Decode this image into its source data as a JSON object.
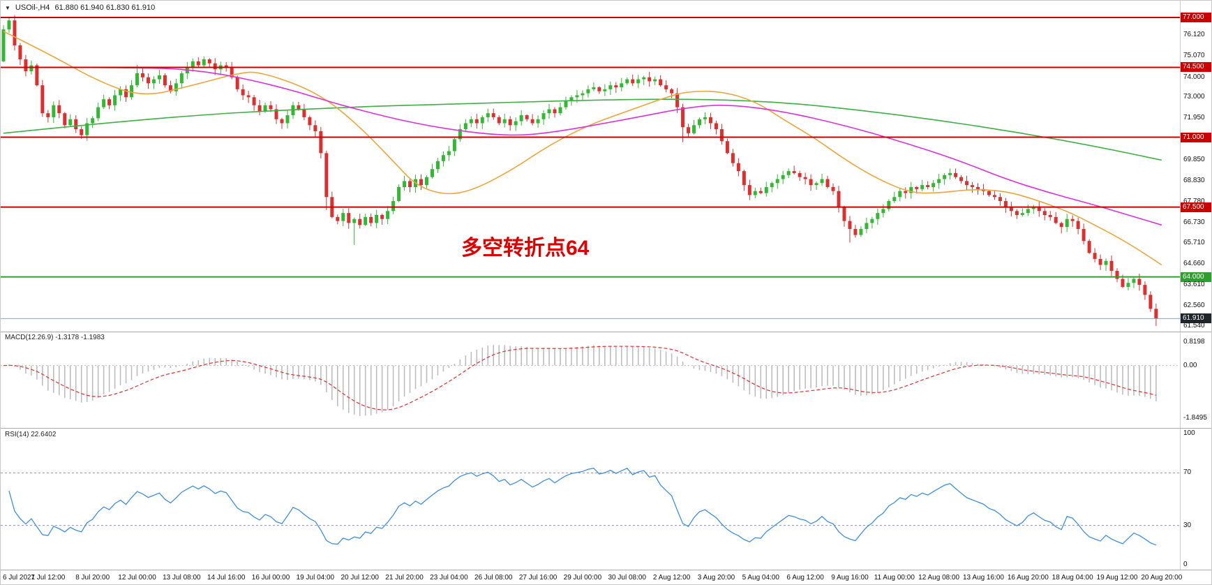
{
  "header": {
    "dropdown_icon": "▼",
    "title": "USOil-,H4",
    "ohlc": "61.880 61.940 61.830 61.910"
  },
  "annotation": {
    "text": "多空转折点64",
    "color": "#DD0000"
  },
  "panes": {
    "macd": {
      "label": "MACD(12.26.9) -1.3178 -1.1983",
      "axis": [
        "0.8198",
        "0.00",
        "-1.8495"
      ]
    },
    "rsi": {
      "label": "RSI(14) 22.6402",
      "axis": [
        "100",
        "70",
        "30",
        "0"
      ]
    }
  },
  "price_axis": [
    {
      "label": "77.000",
      "type": "red"
    },
    {
      "label": "76.120",
      "type": "plain"
    },
    {
      "label": "75.070",
      "type": "plain"
    },
    {
      "label": "74.500",
      "type": "red"
    },
    {
      "label": "74.000",
      "type": "plain"
    },
    {
      "label": "73.000",
      "type": "plain"
    },
    {
      "label": "71.950",
      "type": "plain"
    },
    {
      "label": "71.000",
      "type": "red"
    },
    {
      "label": "69.850",
      "type": "plain"
    },
    {
      "label": "68.830",
      "type": "plain"
    },
    {
      "label": "67.780",
      "type": "plain"
    },
    {
      "label": "67.500",
      "type": "red"
    },
    {
      "label": "66.730",
      "type": "plain"
    },
    {
      "label": "65.710",
      "type": "plain"
    },
    {
      "label": "64.660",
      "type": "plain"
    },
    {
      "label": "64.000",
      "type": "green"
    },
    {
      "label": "63.610",
      "type": "plain"
    },
    {
      "label": "62.560",
      "type": "plain"
    },
    {
      "label": "61.910",
      "type": "current"
    },
    {
      "label": "61.540",
      "type": "plain"
    }
  ],
  "time_axis": [
    "6 Jul 2021",
    "7 Jul 12:00",
    "8 Jul 20:00",
    "12 Jul 00:00",
    "13 Jul 08:00",
    "14 Jul 16:00",
    "16 Jul 00:00",
    "19 Jul 04:00",
    "20 Jul 12:00",
    "21 Jul 20:00",
    "23 Jul 04:00",
    "26 Jul 08:00",
    "27 Jul 16:00",
    "29 Jul 00:00",
    "30 Jul 08:00",
    "2 Aug 12:00",
    "3 Aug 20:00",
    "5 Aug 04:00",
    "6 Aug 12:00",
    "9 Aug 16:00",
    "11 Aug 00:00",
    "12 Aug 08:00",
    "13 Aug 16:00",
    "16 Aug 20:00",
    "18 Aug 04:00",
    "19 Aug 12:00",
    "20 Aug 20:00"
  ],
  "chart_data": {
    "type": "candlestick",
    "symbol": "USOil-",
    "timeframe": "H4",
    "title": "USOil-,H4 61.880 61.940 61.830 61.910",
    "ohlc_display": {
      "open": "61.880",
      "high": "61.940",
      "low": "61.830",
      "close": "61.910"
    },
    "visible_price_range": {
      "min": 61.35,
      "max": 77.4
    },
    "bars_per_label": 8,
    "first_open": 74.8,
    "closes": [
      76.4,
      76.85,
      75.6,
      74.9,
      74.3,
      74.6,
      73.6,
      72.2,
      72.0,
      72.6,
      72.2,
      71.6,
      71.9,
      71.4,
      71.1,
      71.7,
      71.95,
      72.5,
      72.9,
      72.6,
      73.1,
      73.4,
      73.0,
      73.6,
      74.2,
      74.0,
      73.7,
      73.9,
      74.1,
      73.6,
      73.3,
      73.7,
      74.2,
      74.5,
      74.8,
      74.6,
      74.9,
      74.7,
      74.4,
      74.6,
      74.5,
      74.0,
      73.4,
      73.1,
      73.0,
      72.6,
      72.3,
      72.6,
      72.4,
      71.9,
      71.7,
      72.1,
      72.6,
      72.4,
      72.0,
      71.6,
      71.3,
      70.2,
      68.0,
      67.0,
      66.8,
      67.2,
      66.7,
      66.9,
      66.6,
      67.0,
      66.7,
      67.1,
      66.9,
      67.3,
      67.8,
      68.5,
      68.8,
      68.5,
      68.9,
      68.6,
      69.0,
      69.4,
      69.8,
      70.1,
      70.3,
      70.9,
      71.4,
      71.7,
      71.9,
      71.7,
      72.0,
      72.2,
      72.0,
      71.7,
      71.9,
      71.6,
      71.8,
      72.1,
      71.9,
      71.7,
      71.9,
      72.2,
      72.4,
      72.2,
      72.5,
      72.8,
      73.0,
      73.1,
      73.2,
      73.4,
      73.5,
      73.3,
      73.4,
      73.6,
      73.5,
      73.7,
      73.9,
      73.7,
      73.9,
      74.0,
      73.8,
      73.9,
      73.6,
      73.4,
      73.2,
      72.5,
      71.5,
      71.2,
      71.6,
      71.9,
      72.0,
      71.7,
      71.4,
      70.8,
      70.2,
      69.7,
      69.3,
      68.6,
      68.1,
      68.3,
      68.2,
      68.5,
      68.7,
      68.9,
      69.1,
      69.3,
      69.2,
      69.0,
      68.9,
      68.6,
      68.7,
      68.9,
      68.5,
      68.3,
      67.5,
      66.8,
      66.4,
      66.1,
      66.4,
      66.7,
      66.9,
      67.2,
      67.4,
      67.8,
      68.0,
      68.3,
      68.2,
      68.5,
      68.4,
      68.6,
      68.5,
      68.7,
      68.9,
      69.1,
      69.2,
      69.0,
      68.8,
      68.6,
      68.5,
      68.4,
      68.3,
      68.1,
      68.0,
      67.8,
      67.5,
      67.3,
      67.1,
      67.2,
      67.4,
      67.5,
      67.3,
      67.1,
      67.0,
      66.7,
      66.5,
      66.9,
      66.8,
      66.4,
      65.8,
      65.2,
      64.9,
      64.6,
      64.8,
      64.3,
      63.9,
      63.5,
      63.7,
      63.9,
      63.6,
      63.1,
      62.4,
      61.91
    ],
    "wick_highs": {
      "1": 77.0,
      "24": 74.62,
      "36": 75.05,
      "115": 74.08
    },
    "wick_lows": {
      "14": 70.92,
      "58": 67.35,
      "63": 65.6,
      "122": 70.75,
      "134": 67.85,
      "152": 65.72,
      "190": 66.18,
      "207": 61.54
    },
    "horizontal_lines": [
      {
        "price": 77.0,
        "color": "#CC0000",
        "width": 2,
        "label": "77.000"
      },
      {
        "price": 74.5,
        "color": "#CC0000",
        "width": 2,
        "label": "74.500"
      },
      {
        "price": 71.0,
        "color": "#CC0000",
        "width": 2,
        "label": "71.000"
      },
      {
        "price": 67.5,
        "color": "#CC0000",
        "width": 2,
        "label": "67.500"
      },
      {
        "price": 64.0,
        "color": "#2E9E2E",
        "width": 2,
        "label": "64.000"
      }
    ],
    "current_price": 61.91,
    "current_price_label": "61.910",
    "moving_averages": [
      {
        "name": "ma-slow-green",
        "color": "#3CB043",
        "points": [
          [
            0,
            71.2
          ],
          [
            28,
            72.0
          ],
          [
            56,
            72.45
          ],
          [
            84,
            72.7
          ],
          [
            112,
            72.9
          ],
          [
            126,
            72.9
          ],
          [
            140,
            72.75
          ],
          [
            154,
            72.35
          ],
          [
            168,
            71.85
          ],
          [
            182,
            71.25
          ],
          [
            196,
            70.55
          ],
          [
            208,
            69.85
          ]
        ]
      },
      {
        "name": "ma-fast-orange",
        "color": "#EDA53C",
        "points": [
          [
            0,
            76.3
          ],
          [
            8,
            75.2
          ],
          [
            17,
            73.8
          ],
          [
            25,
            73.0
          ],
          [
            34,
            73.6
          ],
          [
            42,
            74.2
          ],
          [
            46,
            74.3
          ],
          [
            56,
            73.3
          ],
          [
            63,
            71.8
          ],
          [
            70,
            69.8
          ],
          [
            74,
            68.6
          ],
          [
            79,
            68.1
          ],
          [
            84,
            68.3
          ],
          [
            91,
            69.3
          ],
          [
            98,
            70.6
          ],
          [
            105,
            71.6
          ],
          [
            112,
            72.3
          ],
          [
            119,
            73.0
          ],
          [
            123,
            73.3
          ],
          [
            129,
            73.3
          ],
          [
            135,
            72.8
          ],
          [
            140,
            71.9
          ],
          [
            146,
            70.9
          ],
          [
            151,
            69.9
          ],
          [
            157,
            68.9
          ],
          [
            163,
            68.2
          ],
          [
            168,
            68.2
          ],
          [
            174,
            68.4
          ],
          [
            180,
            68.3
          ],
          [
            185,
            67.9
          ],
          [
            191,
            67.3
          ],
          [
            196,
            66.6
          ],
          [
            202,
            65.7
          ],
          [
            208,
            64.6
          ]
        ]
      },
      {
        "name": "ma-mid-magenta",
        "color": "#DC30DC",
        "points": [
          [
            0,
            74.5
          ],
          [
            21,
            74.5
          ],
          [
            35,
            74.4
          ],
          [
            49,
            73.6
          ],
          [
            63,
            72.4
          ],
          [
            77,
            71.5
          ],
          [
            90,
            71.05
          ],
          [
            98,
            71.2
          ],
          [
            112,
            71.9
          ],
          [
            123,
            72.5
          ],
          [
            130,
            72.65
          ],
          [
            140,
            72.3
          ],
          [
            151,
            71.6
          ],
          [
            161,
            70.8
          ],
          [
            171,
            69.9
          ],
          [
            180,
            68.9
          ],
          [
            188,
            68.2
          ],
          [
            196,
            67.6
          ],
          [
            202,
            67.1
          ],
          [
            208,
            66.6
          ]
        ]
      }
    ],
    "indicators": {
      "macd": {
        "params": [
          12,
          26,
          9
        ],
        "main": -1.3178,
        "signal": -1.1983,
        "axis_max": 0.8198,
        "axis_min": -1.8495
      },
      "rsi": {
        "period": 14,
        "value": 22.6402,
        "levels": [
          70,
          30
        ],
        "axis": [
          100,
          70,
          30,
          0
        ]
      }
    },
    "colors": {
      "up": "#33B833",
      "down": "#DB3030",
      "rsi": "#3E8EDE",
      "macd_hist": "#BDBDBD",
      "macd_signal": "#E03030",
      "bid_line": "#90A0B8",
      "tag_red": "#CC0000",
      "tag_green": "#2E9E2E",
      "tag_current": "#20242B"
    }
  }
}
